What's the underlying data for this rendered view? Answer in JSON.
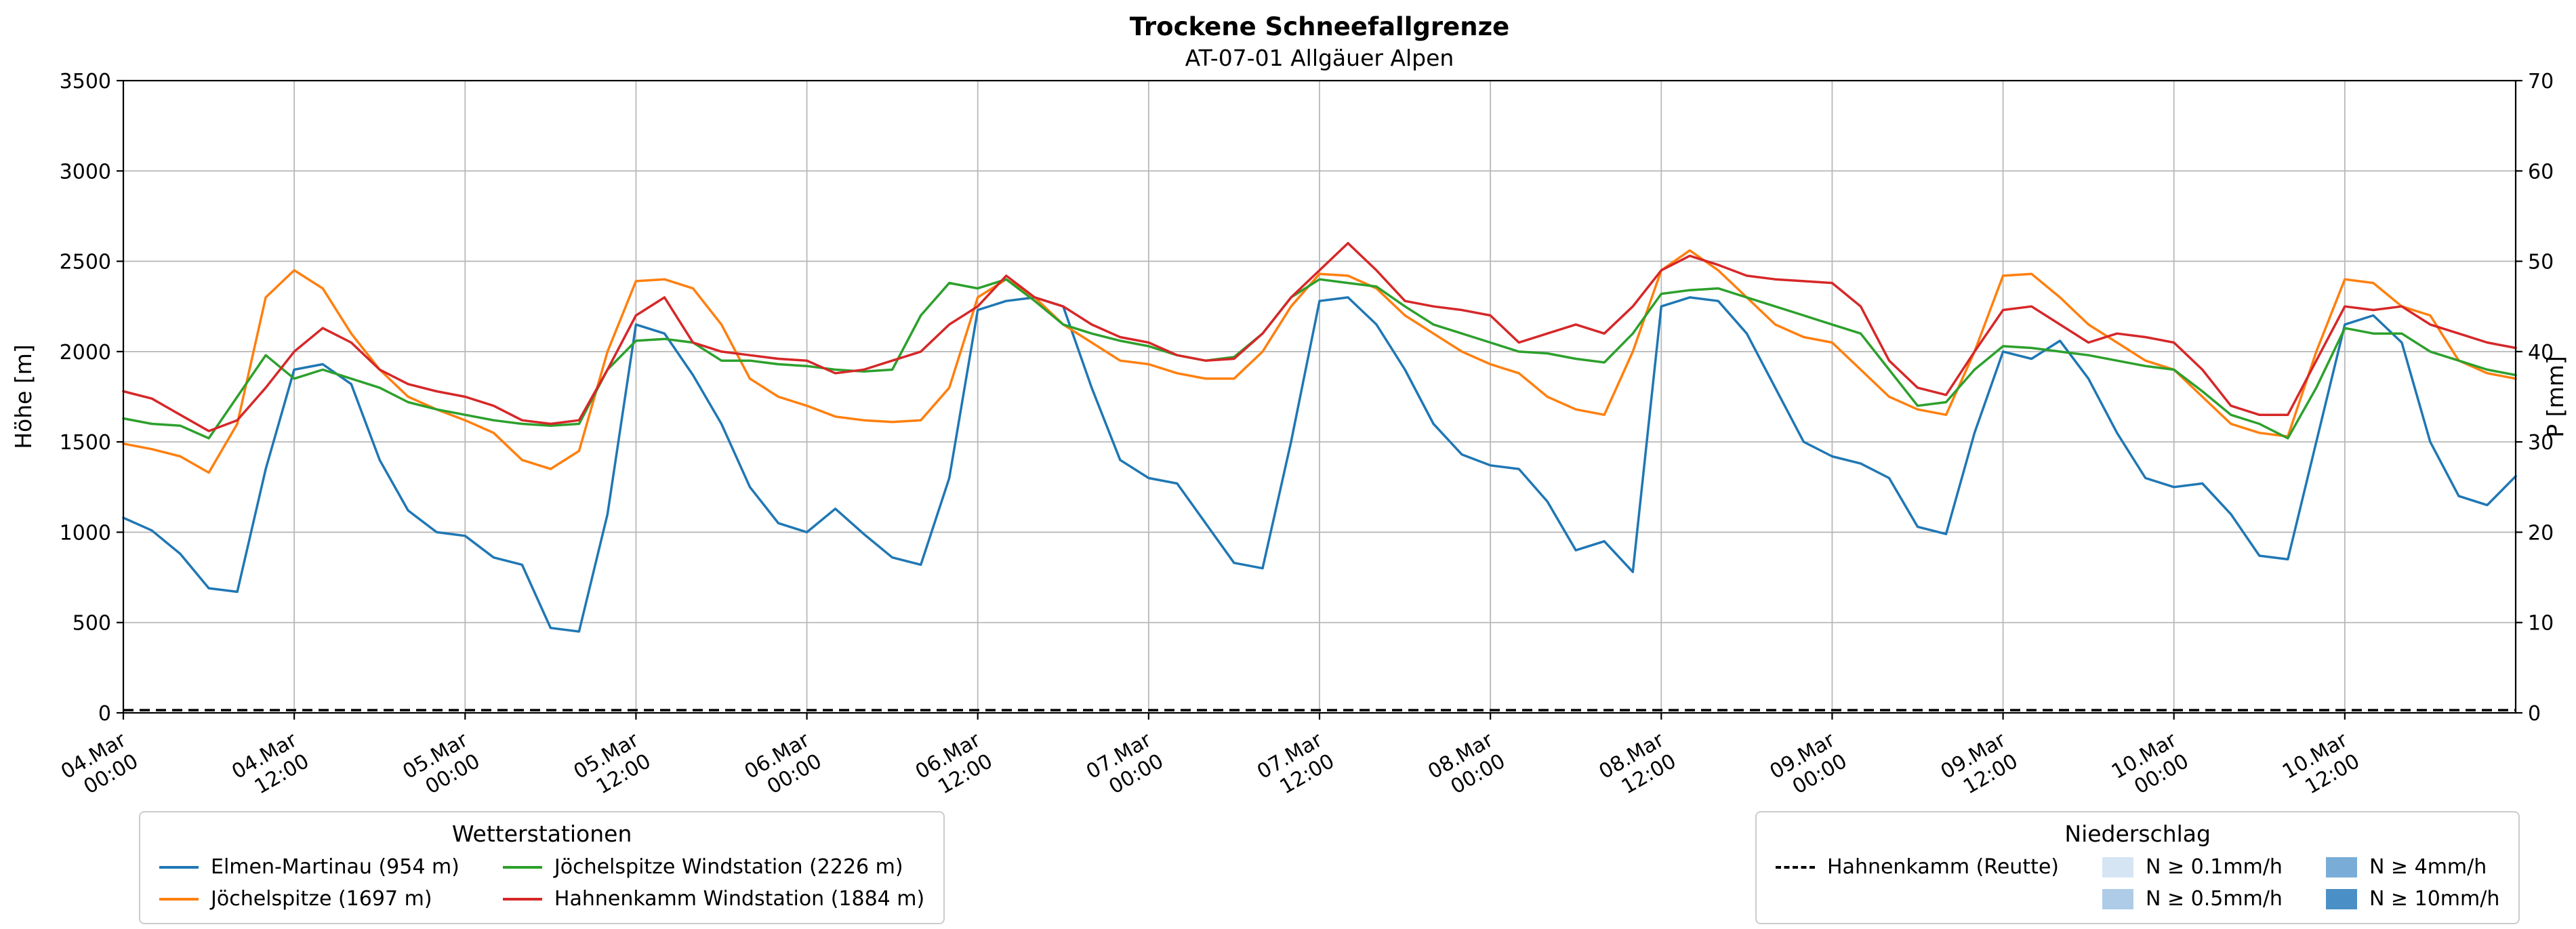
{
  "title": "Trockene Schneefallgrenze",
  "subtitle": "AT-07-01 Allgäuer Alpen",
  "colors": {
    "grid": "#b8b8b8",
    "axis": "#000000",
    "background": "#ffffff",
    "legend_border": "#cccccc"
  },
  "axes": {
    "y_left": {
      "label": "Höhe [m]",
      "min": 0,
      "max": 3500,
      "ticks": [
        0,
        500,
        1000,
        1500,
        2000,
        2500,
        3000,
        3500
      ]
    },
    "y_right": {
      "label": "P [mm]",
      "min": 0,
      "max": 70,
      "ticks": [
        0,
        10,
        20,
        30,
        40,
        50,
        60,
        70
      ]
    },
    "x": {
      "range_hours": [
        0,
        168
      ],
      "ticks": [
        {
          "h": 0,
          "date": "04.Mar",
          "time": "00:00"
        },
        {
          "h": 12,
          "date": "04.Mar",
          "time": "12:00"
        },
        {
          "h": 24,
          "date": "05.Mar",
          "time": "00:00"
        },
        {
          "h": 36,
          "date": "05.Mar",
          "time": "12:00"
        },
        {
          "h": 48,
          "date": "06.Mar",
          "time": "00:00"
        },
        {
          "h": 60,
          "date": "06.Mar",
          "time": "12:00"
        },
        {
          "h": 72,
          "date": "07.Mar",
          "time": "00:00"
        },
        {
          "h": 84,
          "date": "07.Mar",
          "time": "12:00"
        },
        {
          "h": 96,
          "date": "08.Mar",
          "time": "00:00"
        },
        {
          "h": 108,
          "date": "08.Mar",
          "time": "12:00"
        },
        {
          "h": 120,
          "date": "09.Mar",
          "time": "00:00"
        },
        {
          "h": 132,
          "date": "09.Mar",
          "time": "12:00"
        },
        {
          "h": 144,
          "date": "10.Mar",
          "time": "00:00"
        },
        {
          "h": 156,
          "date": "10.Mar",
          "time": "12:00"
        }
      ]
    }
  },
  "legend_stations": {
    "title": "Wetterstationen",
    "items": [
      {
        "label": "Elmen-Martinau (954 m)",
        "color": "#1f77b4"
      },
      {
        "label": "Jöchelspitze (1697 m)",
        "color": "#ff7f0e"
      },
      {
        "label": "Jöchelspitze Windstation (2226 m)",
        "color": "#2ca02c"
      },
      {
        "label": "Hahnenkamm Windstation (1884 m)",
        "color": "#d62728"
      }
    ]
  },
  "legend_precip": {
    "title": "Niederschlag",
    "station_item": {
      "label": "Hahnenkamm (Reutte)",
      "style": "dashed",
      "color": "#000000"
    },
    "levels": [
      {
        "label": "N ≥ 0.1mm/h",
        "color": "#d6e5f4"
      },
      {
        "label": "N ≥ 0.5mm/h",
        "color": "#aecce8"
      },
      {
        "label": "N ≥ 4mm/h",
        "color": "#79add8"
      },
      {
        "label": "N ≥ 10mm/h",
        "color": "#4a90c6"
      }
    ]
  },
  "chart_data": {
    "type": "line",
    "title": "Trockene Schneefallgrenze",
    "subtitle": "AT-07-01 Allgäuer Alpen",
    "xlabel": "",
    "ylabel_left": "Höhe [m]",
    "ylabel_right": "P [mm]",
    "ylim_left": [
      0,
      3500
    ],
    "ylim_right": [
      0,
      70
    ],
    "xlim_hours": [
      0,
      168
    ],
    "x_epoch": "hours since 04.Mar 00:00",
    "grid": true,
    "x_hours": [
      0,
      2,
      4,
      6,
      8,
      10,
      12,
      14,
      16,
      18,
      20,
      22,
      24,
      26,
      28,
      30,
      32,
      34,
      36,
      38,
      40,
      42,
      44,
      46,
      48,
      50,
      52,
      54,
      56,
      58,
      60,
      62,
      64,
      66,
      68,
      70,
      72,
      74,
      76,
      78,
      80,
      82,
      84,
      86,
      88,
      90,
      92,
      94,
      96,
      98,
      100,
      102,
      104,
      106,
      108,
      110,
      112,
      114,
      116,
      118,
      120,
      122,
      124,
      126,
      128,
      130,
      132,
      134,
      136,
      138,
      140,
      142,
      144,
      146,
      148,
      150,
      152,
      154,
      156,
      158,
      160,
      162,
      164,
      166,
      168
    ],
    "series": [
      {
        "name": "Elmen-Martinau (954 m)",
        "color": "#1f77b4",
        "axis": "left",
        "values": [
          1080,
          1010,
          880,
          690,
          670,
          1350,
          1900,
          1930,
          1820,
          1400,
          1120,
          1000,
          980,
          860,
          820,
          470,
          450,
          1100,
          2150,
          2100,
          1870,
          1600,
          1250,
          1050,
          1000,
          1130,
          990,
          860,
          820,
          1300,
          2230,
          2280,
          2300,
          2250,
          1800,
          1400,
          1300,
          1270,
          1050,
          830,
          800,
          1500,
          2280,
          2300,
          2150,
          1900,
          1600,
          1430,
          1370,
          1350,
          1170,
          900,
          950,
          780,
          2250,
          2300,
          2280,
          2100,
          1800,
          1500,
          1420,
          1380,
          1300,
          1030,
          990,
          1550,
          2000,
          1960,
          2060,
          1850,
          1550,
          1300,
          1250,
          1270,
          1100,
          870,
          850,
          1500,
          2150,
          2200,
          2050,
          1500,
          1200,
          1150,
          1310
        ]
      },
      {
        "name": "Jöchelspitze (1697 m)",
        "color": "#ff7f0e",
        "axis": "left",
        "values": [
          1490,
          1460,
          1420,
          1330,
          1600,
          2300,
          2450,
          2350,
          2100,
          1900,
          1750,
          1680,
          1620,
          1550,
          1400,
          1350,
          1450,
          2000,
          2390,
          2400,
          2350,
          2150,
          1850,
          1750,
          1700,
          1640,
          1620,
          1610,
          1620,
          1800,
          2300,
          2400,
          2300,
          2150,
          2050,
          1950,
          1930,
          1880,
          1850,
          1850,
          2000,
          2250,
          2430,
          2420,
          2350,
          2200,
          2100,
          2000,
          1930,
          1880,
          1750,
          1680,
          1650,
          2000,
          2450,
          2560,
          2450,
          2300,
          2150,
          2080,
          2050,
          1900,
          1750,
          1680,
          1650,
          2000,
          2420,
          2430,
          2300,
          2150,
          2050,
          1950,
          1900,
          1750,
          1600,
          1550,
          1530,
          2000,
          2400,
          2380,
          2250,
          2200,
          1950,
          1880,
          1850
        ]
      },
      {
        "name": "Jöchelspitze Windstation (2226 m)",
        "color": "#2ca02c",
        "axis": "left",
        "values": [
          1630,
          1600,
          1590,
          1520,
          1750,
          1980,
          1850,
          1900,
          1850,
          1800,
          1720,
          1680,
          1650,
          1620,
          1600,
          1590,
          1600,
          1900,
          2060,
          2070,
          2050,
          1950,
          1950,
          1930,
          1920,
          1900,
          1890,
          1900,
          2200,
          2380,
          2350,
          2400,
          2280,
          2150,
          2100,
          2060,
          2030,
          1980,
          1950,
          1970,
          2100,
          2300,
          2400,
          2380,
          2360,
          2250,
          2150,
          2100,
          2050,
          2000,
          1990,
          1960,
          1940,
          2100,
          2320,
          2340,
          2350,
          2300,
          2250,
          2200,
          2150,
          2100,
          1900,
          1700,
          1720,
          1900,
          2030,
          2020,
          2000,
          1980,
          1950,
          1920,
          1900,
          1780,
          1650,
          1600,
          1520,
          1800,
          2130,
          2100,
          2100,
          2000,
          1950,
          1900,
          1870
        ]
      },
      {
        "name": "Hahnenkamm Windstation (1884 m)",
        "color": "#d62728",
        "axis": "left",
        "values": [
          1780,
          1740,
          1650,
          1560,
          1620,
          1800,
          2000,
          2130,
          2050,
          1900,
          1820,
          1780,
          1750,
          1700,
          1620,
          1600,
          1620,
          1900,
          2200,
          2300,
          2050,
          2000,
          1980,
          1960,
          1950,
          1880,
          1900,
          1950,
          2000,
          2150,
          2250,
          2420,
          2300,
          2250,
          2150,
          2080,
          2050,
          1980,
          1950,
          1960,
          2100,
          2300,
          2450,
          2600,
          2450,
          2280,
          2250,
          2230,
          2200,
          2050,
          2100,
          2150,
          2100,
          2250,
          2450,
          2530,
          2480,
          2420,
          2400,
          2390,
          2380,
          2250,
          1950,
          1800,
          1760,
          2000,
          2230,
          2250,
          2150,
          2050,
          2100,
          2080,
          2050,
          1900,
          1700,
          1650,
          1650,
          1950,
          2250,
          2230,
          2250,
          2150,
          2100,
          2050,
          2020
        ]
      }
    ],
    "precipitation_series": {
      "name": "Hahnenkamm (Reutte)",
      "color": "#000000",
      "style": "dashed",
      "axis": "right",
      "constant_value": 0
    }
  }
}
